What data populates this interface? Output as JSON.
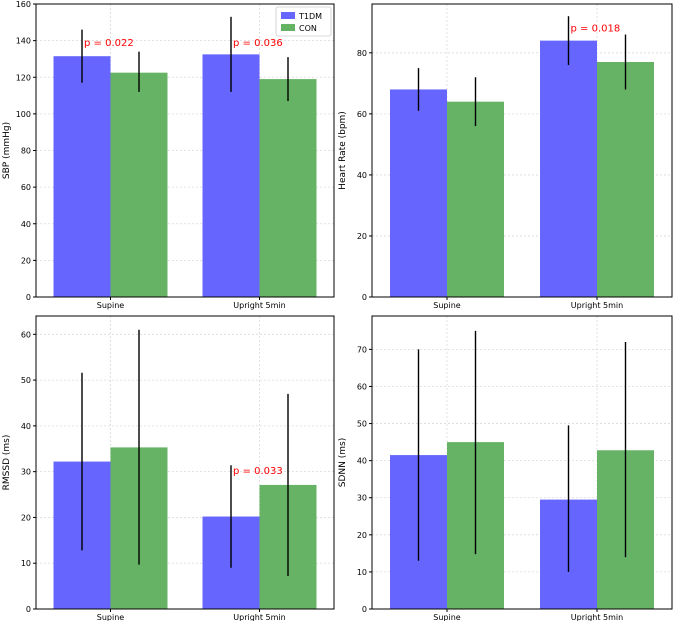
{
  "chart_data": [
    {
      "type": "bar",
      "panel": "top-left",
      "categories": [
        "Supine",
        "Upright 5min"
      ],
      "series": [
        {
          "name": "T1DM",
          "color": "#6666ff",
          "values": [
            131.5,
            132.5
          ],
          "error_low": [
            117,
            112
          ],
          "error_high": [
            146,
            153
          ]
        },
        {
          "name": "CON",
          "color": "#66b366",
          "values": [
            122.5,
            119
          ],
          "error_low": [
            112,
            107
          ],
          "error_high": [
            134,
            131
          ]
        }
      ],
      "xlabel": "",
      "ylabel": "SBP (mmHg)",
      "ylim": [
        0,
        160
      ],
      "yticks": [
        0,
        20,
        40,
        60,
        80,
        100,
        120,
        140,
        160
      ],
      "grid": true,
      "legend": "top-right",
      "annotations": [
        {
          "text": "p = 0.022",
          "category": 0,
          "y": 137
        },
        {
          "text": "p = 0.036",
          "category": 1,
          "y": 137
        }
      ]
    },
    {
      "type": "bar",
      "panel": "top-right",
      "categories": [
        "Supine",
        "Upright 5min"
      ],
      "series": [
        {
          "name": "T1DM",
          "color": "#6666ff",
          "values": [
            68,
            84
          ],
          "error_low": [
            61,
            76
          ],
          "error_high": [
            75,
            92
          ]
        },
        {
          "name": "CON",
          "color": "#66b366",
          "values": [
            64,
            77
          ],
          "error_low": [
            56,
            68
          ],
          "error_high": [
            72,
            86
          ]
        }
      ],
      "xlabel": "",
      "ylabel": "Heart Rate (bpm)",
      "ylim": [
        0,
        96
      ],
      "yticks": [
        0,
        20,
        40,
        60,
        80
      ],
      "grid": true,
      "annotations": [
        {
          "text": "p = 0.018",
          "category": 1,
          "y": 87
        }
      ]
    },
    {
      "type": "bar",
      "panel": "bottom-left",
      "categories": [
        "Supine",
        "Upright 5min"
      ],
      "series": [
        {
          "name": "T1DM",
          "color": "#6666ff",
          "values": [
            32.2,
            20.2
          ],
          "error_low": [
            12.8,
            9
          ],
          "error_high": [
            51.6,
            31.4
          ]
        },
        {
          "name": "CON",
          "color": "#66b366",
          "values": [
            35.3,
            27.1
          ],
          "error_low": [
            9.7,
            7.2
          ],
          "error_high": [
            61,
            47
          ]
        }
      ],
      "xlabel": "",
      "ylabel": "RMSSD (ms)",
      "ylim": [
        0,
        64
      ],
      "yticks": [
        0,
        10,
        20,
        30,
        40,
        50,
        60
      ],
      "grid": true,
      "annotations": [
        {
          "text": "p = 0.033",
          "category": 1,
          "y": 29.5
        }
      ]
    },
    {
      "type": "bar",
      "panel": "bottom-right",
      "categories": [
        "Supine",
        "Upright 5min"
      ],
      "series": [
        {
          "name": "T1DM",
          "color": "#6666ff",
          "values": [
            41.5,
            29.5
          ],
          "error_low": [
            13,
            10
          ],
          "error_high": [
            70,
            49.5
          ]
        },
        {
          "name": "CON",
          "color": "#66b366",
          "values": [
            45,
            42.8
          ],
          "error_low": [
            14.8,
            14
          ],
          "error_high": [
            75,
            72
          ]
        }
      ],
      "xlabel": "",
      "ylabel": "SDNN (ms)",
      "ylim": [
        0,
        79
      ],
      "yticks": [
        0,
        10,
        20,
        30,
        40,
        50,
        60,
        70
      ],
      "grid": true,
      "annotations": []
    }
  ],
  "colors": {
    "annotation": "#ff0000",
    "error_bar": "#000000",
    "grid": "#d9d9d9",
    "axis": "#000000"
  }
}
